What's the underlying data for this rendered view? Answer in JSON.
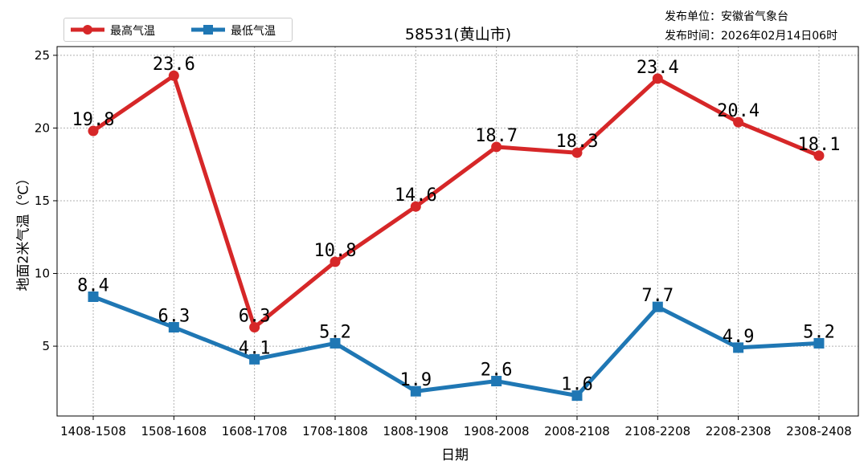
{
  "chart_data": {
    "type": "line",
    "title": "58531(黄山市)",
    "publisher": "发布单位：安徽省气象台",
    "publish_time": "发布时间：2026年02月14日06时",
    "xlabel": "日期",
    "ylabel": "地面2米气温（℃）",
    "categories": [
      "1408-1508",
      "1508-1608",
      "1608-1708",
      "1708-1808",
      "1808-1908",
      "1908-2008",
      "2008-2108",
      "2108-2208",
      "2208-2308",
      "2308-2408"
    ],
    "yticks": [
      5,
      10,
      15,
      20,
      25
    ],
    "ylim": [
      0.2,
      25.6
    ],
    "grid": true,
    "legend_position": "top-left",
    "series": [
      {
        "name": "最高气温",
        "color": "#d62728",
        "marker": "circle",
        "values": [
          19.8,
          23.6,
          6.3,
          10.8,
          14.6,
          18.7,
          18.3,
          23.4,
          20.4,
          18.1
        ]
      },
      {
        "name": "最低气温",
        "color": "#1f77b4",
        "marker": "square",
        "values": [
          8.4,
          6.3,
          4.1,
          5.2,
          1.9,
          2.6,
          1.6,
          7.7,
          4.9,
          5.2
        ]
      }
    ]
  }
}
